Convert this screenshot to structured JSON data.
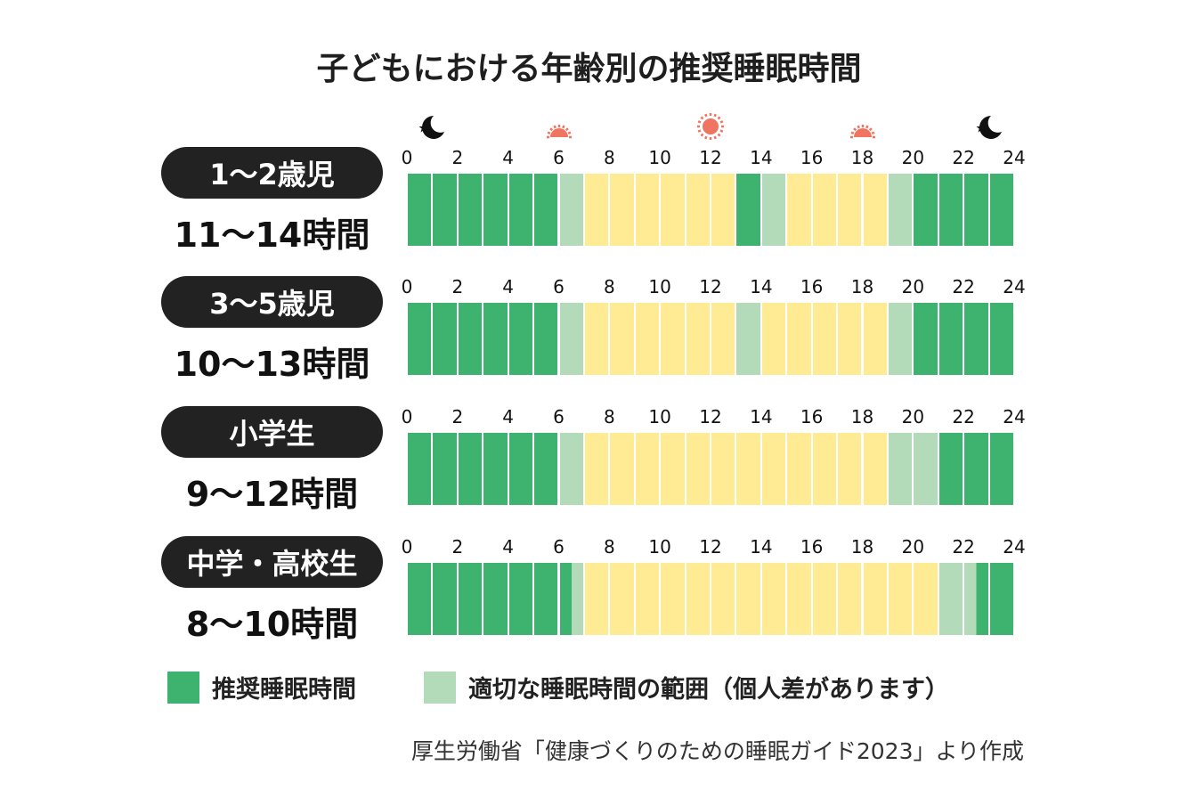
{
  "title": "子どもにおける年齢別の推奨睡眠時間",
  "colors": {
    "recommended": "#3db36f",
    "range": "#b3dbb9",
    "awake": "#feeb93",
    "sun": "#ef7461",
    "moon": "#111111"
  },
  "icons": [
    {
      "name": "moon-star-icon",
      "hour": 1
    },
    {
      "name": "sunrise-icon",
      "hour": 6
    },
    {
      "name": "sun-icon",
      "hour": 12
    },
    {
      "name": "sunset-icon",
      "hour": 18
    },
    {
      "name": "moon-star-icon",
      "hour": 23
    }
  ],
  "chart_data": {
    "type": "bar",
    "title": "子どもにおける年齢別の推奨睡眠時間",
    "x_ticks": [
      "0",
      "2",
      "4",
      "6",
      "8",
      "10",
      "12",
      "14",
      "16",
      "18",
      "20",
      "22",
      "24"
    ],
    "xlim": [
      0,
      24
    ],
    "legend": [
      {
        "key": "recommended",
        "label": "推奨睡眠時間"
      },
      {
        "key": "range",
        "label": "適切な睡眠時間の範囲（個人差があります）"
      }
    ],
    "legend_position": "bottom",
    "rows": [
      {
        "label": "1〜2歳児",
        "hours": "11〜14時間",
        "segments": [
          {
            "start": 0,
            "end": 6,
            "type": "recommended"
          },
          {
            "start": 6,
            "end": 7,
            "type": "range"
          },
          {
            "start": 7,
            "end": 13,
            "type": "awake"
          },
          {
            "start": 13,
            "end": 14,
            "type": "recommended"
          },
          {
            "start": 14,
            "end": 15,
            "type": "range"
          },
          {
            "start": 15,
            "end": 19,
            "type": "awake"
          },
          {
            "start": 19,
            "end": 20,
            "type": "range"
          },
          {
            "start": 20,
            "end": 24,
            "type": "recommended"
          }
        ]
      },
      {
        "label": "3〜5歳児",
        "hours": "10〜13時間",
        "segments": [
          {
            "start": 0,
            "end": 6,
            "type": "recommended"
          },
          {
            "start": 6,
            "end": 7,
            "type": "range"
          },
          {
            "start": 7,
            "end": 13,
            "type": "awake"
          },
          {
            "start": 13,
            "end": 14,
            "type": "range"
          },
          {
            "start": 14,
            "end": 19,
            "type": "awake"
          },
          {
            "start": 19,
            "end": 20,
            "type": "range"
          },
          {
            "start": 20,
            "end": 24,
            "type": "recommended"
          }
        ]
      },
      {
        "label": "小学生",
        "hours": "9〜12時間",
        "segments": [
          {
            "start": 0,
            "end": 6,
            "type": "recommended"
          },
          {
            "start": 6,
            "end": 7,
            "type": "range"
          },
          {
            "start": 7,
            "end": 19,
            "type": "awake"
          },
          {
            "start": 19,
            "end": 21,
            "type": "range"
          },
          {
            "start": 21,
            "end": 24,
            "type": "recommended"
          }
        ]
      },
      {
        "label": "中学・高校生",
        "hours": "8〜10時間",
        "segments": [
          {
            "start": 0,
            "end": 6.5,
            "type": "recommended"
          },
          {
            "start": 6.5,
            "end": 7,
            "type": "range"
          },
          {
            "start": 7,
            "end": 21,
            "type": "awake"
          },
          {
            "start": 21,
            "end": 22.5,
            "type": "range"
          },
          {
            "start": 22.5,
            "end": 24,
            "type": "recommended"
          }
        ]
      }
    ]
  },
  "source": "厚生労働省「健康づくりのための睡眠ガイド2023」より作成"
}
